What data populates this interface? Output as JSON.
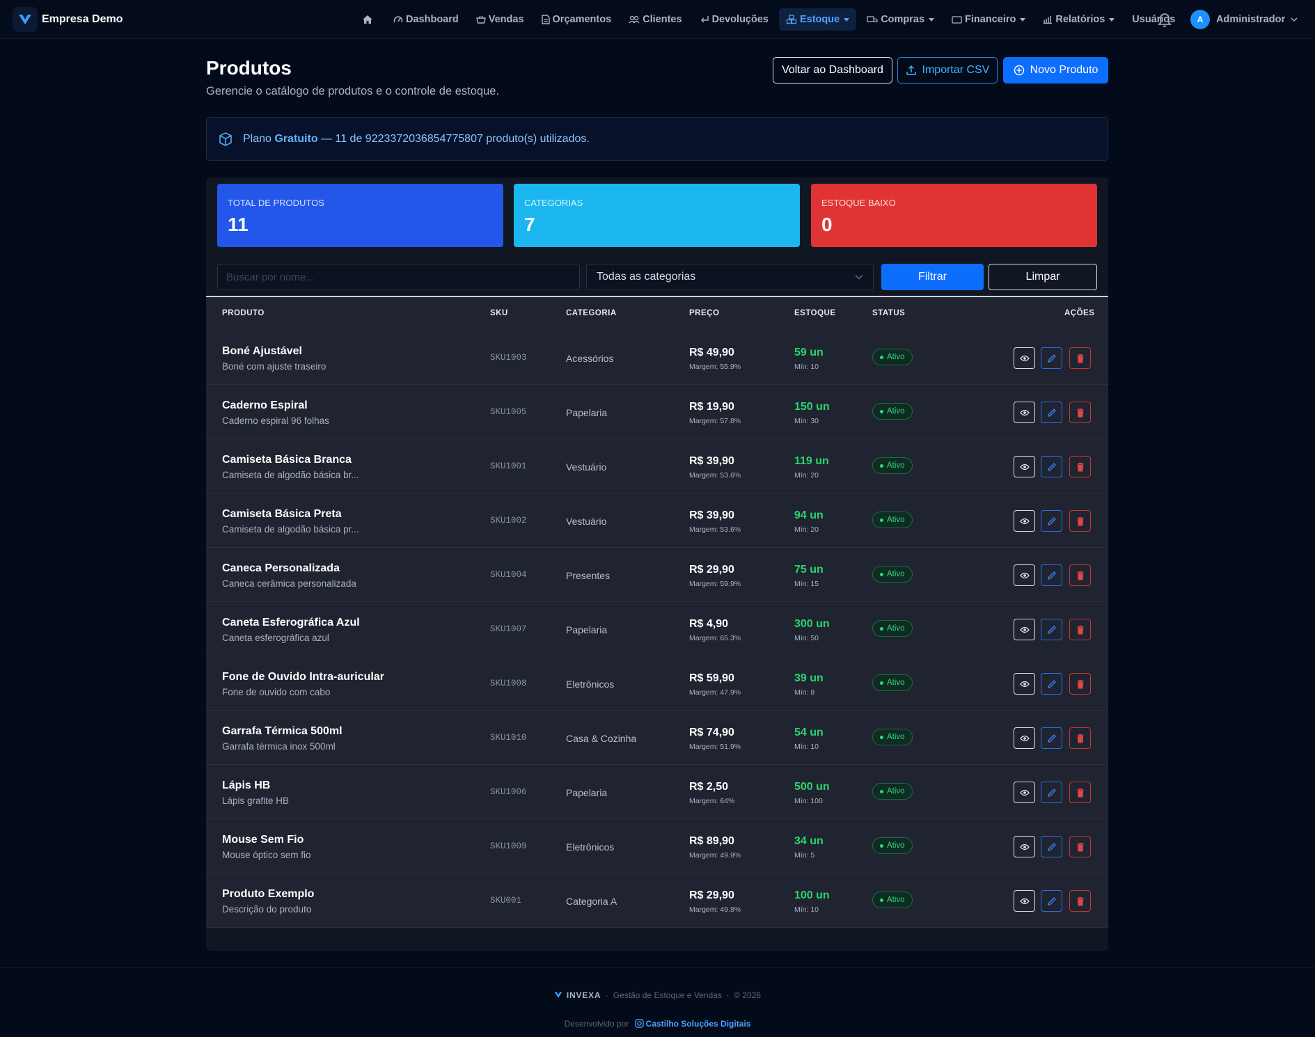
{
  "brand": {
    "name": "Empresa Demo"
  },
  "nav": {
    "dashboard": "Dashboard",
    "vendas": "Vendas",
    "orcamentos": "Orçamentos",
    "clientes": "Clientes",
    "devolucoes": "Devoluções",
    "estoque": "Estoque",
    "compras": "Compras",
    "financeiro": "Financeiro",
    "relatorios": "Relatórios",
    "usuarios": "Usuários"
  },
  "user": {
    "initial": "A",
    "name": "Administrador"
  },
  "page": {
    "title": "Produtos",
    "subtitle": "Gerencie o catálogo de produtos e o controle de estoque."
  },
  "actions": {
    "back": "Voltar ao Dashboard",
    "import_csv": "Importar CSV",
    "new_product": "Novo Produto"
  },
  "plan": {
    "prefix": "Plano",
    "name": "Gratuito",
    "suffix": "— 11 de 9223372036854775807 produto(s) utilizados."
  },
  "stats": [
    {
      "label": "Total de Produtos",
      "value": "11",
      "color": "#2257ea"
    },
    {
      "label": "Categorias",
      "value": "7",
      "color": "#1bb6ef"
    },
    {
      "label": "Estoque Baixo",
      "value": "0",
      "color": "#e03434"
    }
  ],
  "filters": {
    "search_placeholder": "Buscar por nome...",
    "category_selected": "Todas as categorias",
    "filter_label": "Filtrar",
    "clear_label": "Limpar"
  },
  "table": {
    "headers": {
      "produto": "PRODUTO",
      "sku": "SKU",
      "categoria": "CATEGORIA",
      "preco": "PREÇO",
      "estoque": "ESTOQUE",
      "status": "STATUS",
      "acoes": "AÇÕES"
    },
    "rows": [
      {
        "name": "Boné Ajustável",
        "desc": "Boné com ajuste traseiro",
        "sku": "SKU1003",
        "category": "Acessórios",
        "price": "R$ 49,90",
        "margin": "Margem: 55.9%",
        "stock": "59 un",
        "min": "Mín: 10",
        "status": "Ativo"
      },
      {
        "name": "Caderno Espiral",
        "desc": "Caderno espiral 96 folhas",
        "sku": "SKU1005",
        "category": "Papelaria",
        "price": "R$ 19,90",
        "margin": "Margem: 57.8%",
        "stock": "150 un",
        "min": "Mín: 30",
        "status": "Ativo"
      },
      {
        "name": "Camiseta Básica Branca",
        "desc": "Camiseta de algodão básica br...",
        "sku": "SKU1001",
        "category": "Vestuário",
        "price": "R$ 39,90",
        "margin": "Margem: 53.6%",
        "stock": "119 un",
        "min": "Mín: 20",
        "status": "Ativo"
      },
      {
        "name": "Camiseta Básica Preta",
        "desc": "Camiseta de algodão básica pr...",
        "sku": "SKU1002",
        "category": "Vestuário",
        "price": "R$ 39,90",
        "margin": "Margem: 53.6%",
        "stock": "94 un",
        "min": "Mín: 20",
        "status": "Ativo"
      },
      {
        "name": "Caneca Personalizada",
        "desc": "Caneca cerâmica personalizada",
        "sku": "SKU1004",
        "category": "Presentes",
        "price": "R$ 29,90",
        "margin": "Margem: 59.9%",
        "stock": "75 un",
        "min": "Mín: 15",
        "status": "Ativo"
      },
      {
        "name": "Caneta Esferográfica Azul",
        "desc": "Caneta esferográfica azul",
        "sku": "SKU1007",
        "category": "Papelaria",
        "price": "R$ 4,90",
        "margin": "Margem: 65.3%",
        "stock": "300 un",
        "min": "Mín: 50",
        "status": "Ativo"
      },
      {
        "name": "Fone de Ouvido Intra-auricular",
        "desc": "Fone de ouvido com cabo",
        "sku": "SKU1008",
        "category": "Eletrônicos",
        "price": "R$ 59,90",
        "margin": "Margem: 47.9%",
        "stock": "39 un",
        "min": "Mín: 8",
        "status": "Ativo"
      },
      {
        "name": "Garrafa Térmica 500ml",
        "desc": "Garrafa térmica inox 500ml",
        "sku": "SKU1010",
        "category": "Casa & Cozinha",
        "price": "R$ 74,90",
        "margin": "Margem: 51.9%",
        "stock": "54 un",
        "min": "Mín: 10",
        "status": "Ativo"
      },
      {
        "name": "Lápis HB",
        "desc": "Lápis grafite HB",
        "sku": "SKU1006",
        "category": "Papelaria",
        "price": "R$ 2,50",
        "margin": "Margem: 64%",
        "stock": "500 un",
        "min": "Mín: 100",
        "status": "Ativo"
      },
      {
        "name": "Mouse Sem Fio",
        "desc": "Mouse óptico sem fio",
        "sku": "SKU1009",
        "category": "Eletrônicos",
        "price": "R$ 89,90",
        "margin": "Margem: 49.9%",
        "stock": "34 un",
        "min": "Mín: 5",
        "status": "Ativo"
      },
      {
        "name": "Produto Exemplo",
        "desc": "Descrição do produto",
        "sku": "SKU001",
        "category": "Categoria A",
        "price": "R$ 29,90",
        "margin": "Margem: 49.8%",
        "stock": "100 un",
        "min": "Mín: 10",
        "status": "Ativo"
      }
    ]
  },
  "footer": {
    "brand": "INVEXA",
    "tagline": "Gestão de Estoque e Vendas",
    "sep": "·",
    "copyright": "© 2026",
    "developed_by": "Desenvolvido por",
    "developer": "Castilho Soluções Digitais"
  },
  "icons": {
    "logo": "v-logo-icon",
    "home": "home-icon",
    "bell": "bell-icon",
    "view": "eye-icon",
    "edit": "pencil-icon",
    "delete": "trash-icon",
    "plan": "box-icon",
    "import": "upload-icon",
    "new": "plus-circle-icon",
    "instagram": "instagram-icon"
  },
  "colors": {
    "accent": "#0d6efd",
    "success": "#2bd56d",
    "danger": "#e03434",
    "info": "#1bb6ef",
    "background": "#030b1a"
  }
}
